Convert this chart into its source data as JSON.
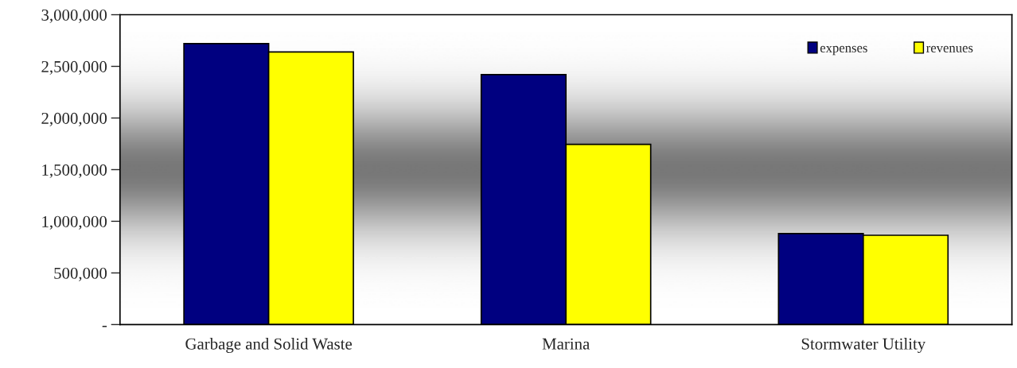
{
  "chart_data": {
    "type": "bar",
    "categories": [
      "Garbage and Solid Waste",
      "Marina",
      "Stormwater Utility"
    ],
    "series": [
      {
        "name": "expenses",
        "color": "#000080",
        "values": [
          2720000,
          2420000,
          881000
        ]
      },
      {
        "name": "revenues",
        "color": "#ffff00",
        "values": [
          2640000,
          1745000,
          865000
        ]
      }
    ],
    "ylim": [
      0,
      3000000
    ],
    "yticks": [
      {
        "value": 0,
        "label": "-"
      },
      {
        "value": 500000,
        "label": "500,000"
      },
      {
        "value": 1000000,
        "label": "1,000,000"
      },
      {
        "value": 1500000,
        "label": "1,500,000"
      },
      {
        "value": 2000000,
        "label": "2,000,000"
      },
      {
        "value": 2500000,
        "label": "2,500,000"
      },
      {
        "value": 3000000,
        "label": "3,000,000"
      }
    ],
    "grid": false,
    "legend": "top right"
  }
}
